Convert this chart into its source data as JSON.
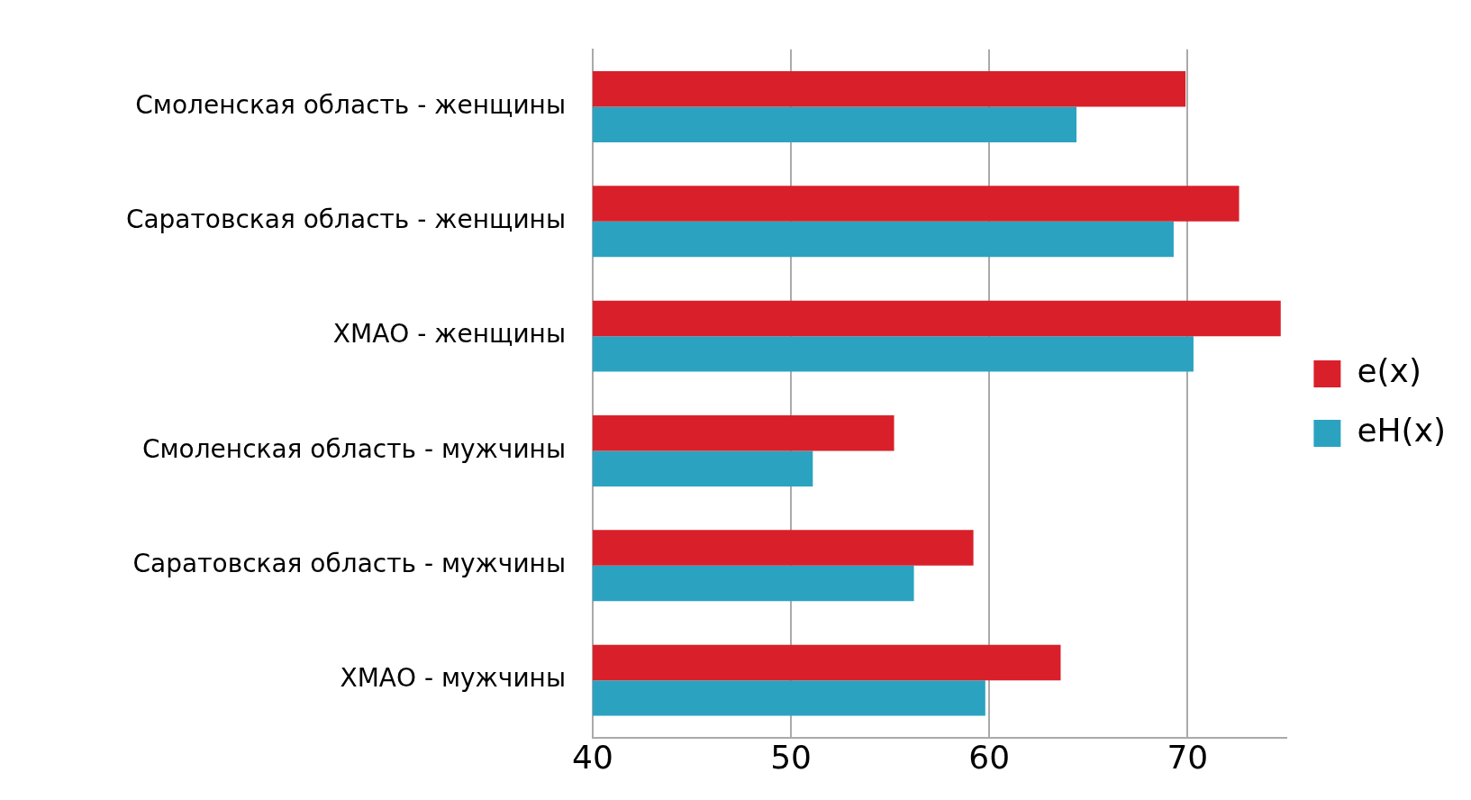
{
  "chart_data": {
    "type": "bar",
    "orientation": "horizontal",
    "categories": [
      "Смоленская область - женщины",
      "Саратовская область - женщины",
      "ХМАО - женщины",
      "Смоленская область - мужчины",
      "Саратовская область - мужчины",
      "ХМАО - мужчины"
    ],
    "series": [
      {
        "name": "e(x)",
        "color": "#d9202a",
        "values": [
          69.9,
          72.6,
          74.7,
          55.2,
          59.2,
          63.6
        ]
      },
      {
        "name": "eH(x)",
        "color": "#2ba3c0",
        "values": [
          64.4,
          69.3,
          70.3,
          51.1,
          56.2,
          59.8
        ]
      }
    ],
    "xlim": [
      40,
      75
    ],
    "xticks": [
      40,
      50,
      60,
      70
    ],
    "grid": "x",
    "legend": "right"
  }
}
